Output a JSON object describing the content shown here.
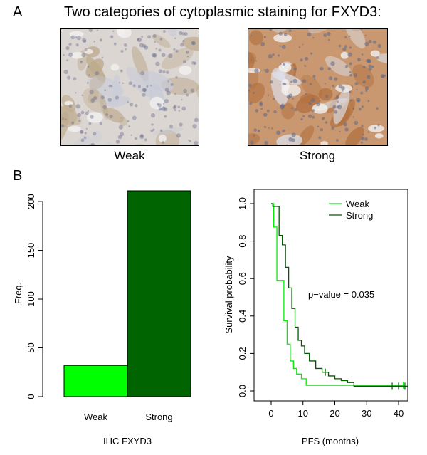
{
  "panel_a": {
    "letter": "A",
    "title": "Two categories of cytoplasmic staining for FXYD3:",
    "images": [
      {
        "caption": "Weak",
        "stain": "weak"
      },
      {
        "caption": "Strong",
        "stain": "strong"
      }
    ],
    "colors": {
      "weak_background": "#dcd6d2",
      "weak_tissue": "#bda98c",
      "weak_stroma": "#c8cbd8",
      "strong_background": "#c99870",
      "strong_tissue": "#b1703f",
      "strong_stroma": "#dcdfe8",
      "nucleus": "#5e6789"
    }
  },
  "panel_b": {
    "letter": "B"
  },
  "chart_data": [
    {
      "type": "bar",
      "categories": [
        "Weak",
        "Strong"
      ],
      "values": [
        32,
        211
      ],
      "xlabel": "IHC FXYD3",
      "ylabel": "Freq.",
      "yticks": [
        0,
        50,
        100,
        150,
        200
      ],
      "ylim": [
        0,
        211
      ],
      "colors": [
        "#00ff00",
        "#006400"
      ],
      "grid": false
    },
    {
      "type": "line",
      "subtype": "kaplan-meier step",
      "xlabel": "PFS (months)",
      "ylabel": "Survival probability",
      "xticks": [
        0,
        10,
        20,
        30,
        40
      ],
      "yticks": [
        "0.0",
        "0.2",
        "0.4",
        "0.6",
        "0.8",
        "1.0"
      ],
      "xlim": [
        0,
        43
      ],
      "ylim": [
        0,
        1.02
      ],
      "annotation": "p−value =  0.035",
      "legend": {
        "position": "top-right",
        "entries": [
          "Weak",
          "Strong"
        ]
      },
      "series": [
        {
          "name": "Weak",
          "color": "#00ee00",
          "x": [
            0,
            0.8,
            1.8,
            4,
            5,
            6,
            7,
            8,
            9.5,
            11,
            42
          ],
          "y": [
            1.0,
            0.875,
            0.59,
            0.375,
            0.25,
            0.16,
            0.12,
            0.09,
            0.065,
            0.03,
            0.03
          ],
          "censor_x": [
            41.5
          ]
        },
        {
          "name": "Strong",
          "color": "#005a00",
          "x": [
            0,
            0.5,
            2.5,
            3.5,
            4.5,
            5.5,
            6.5,
            7.5,
            8.5,
            9.5,
            10.5,
            12,
            14,
            16,
            18,
            20,
            22,
            24,
            26,
            43
          ],
          "y": [
            1.0,
            0.985,
            0.83,
            0.78,
            0.66,
            0.55,
            0.44,
            0.34,
            0.27,
            0.24,
            0.2,
            0.16,
            0.12,
            0.1,
            0.08,
            0.065,
            0.055,
            0.045,
            0.025,
            0.025
          ],
          "censor_x": [
            17,
            38,
            40,
            42
          ]
        }
      ]
    }
  ]
}
